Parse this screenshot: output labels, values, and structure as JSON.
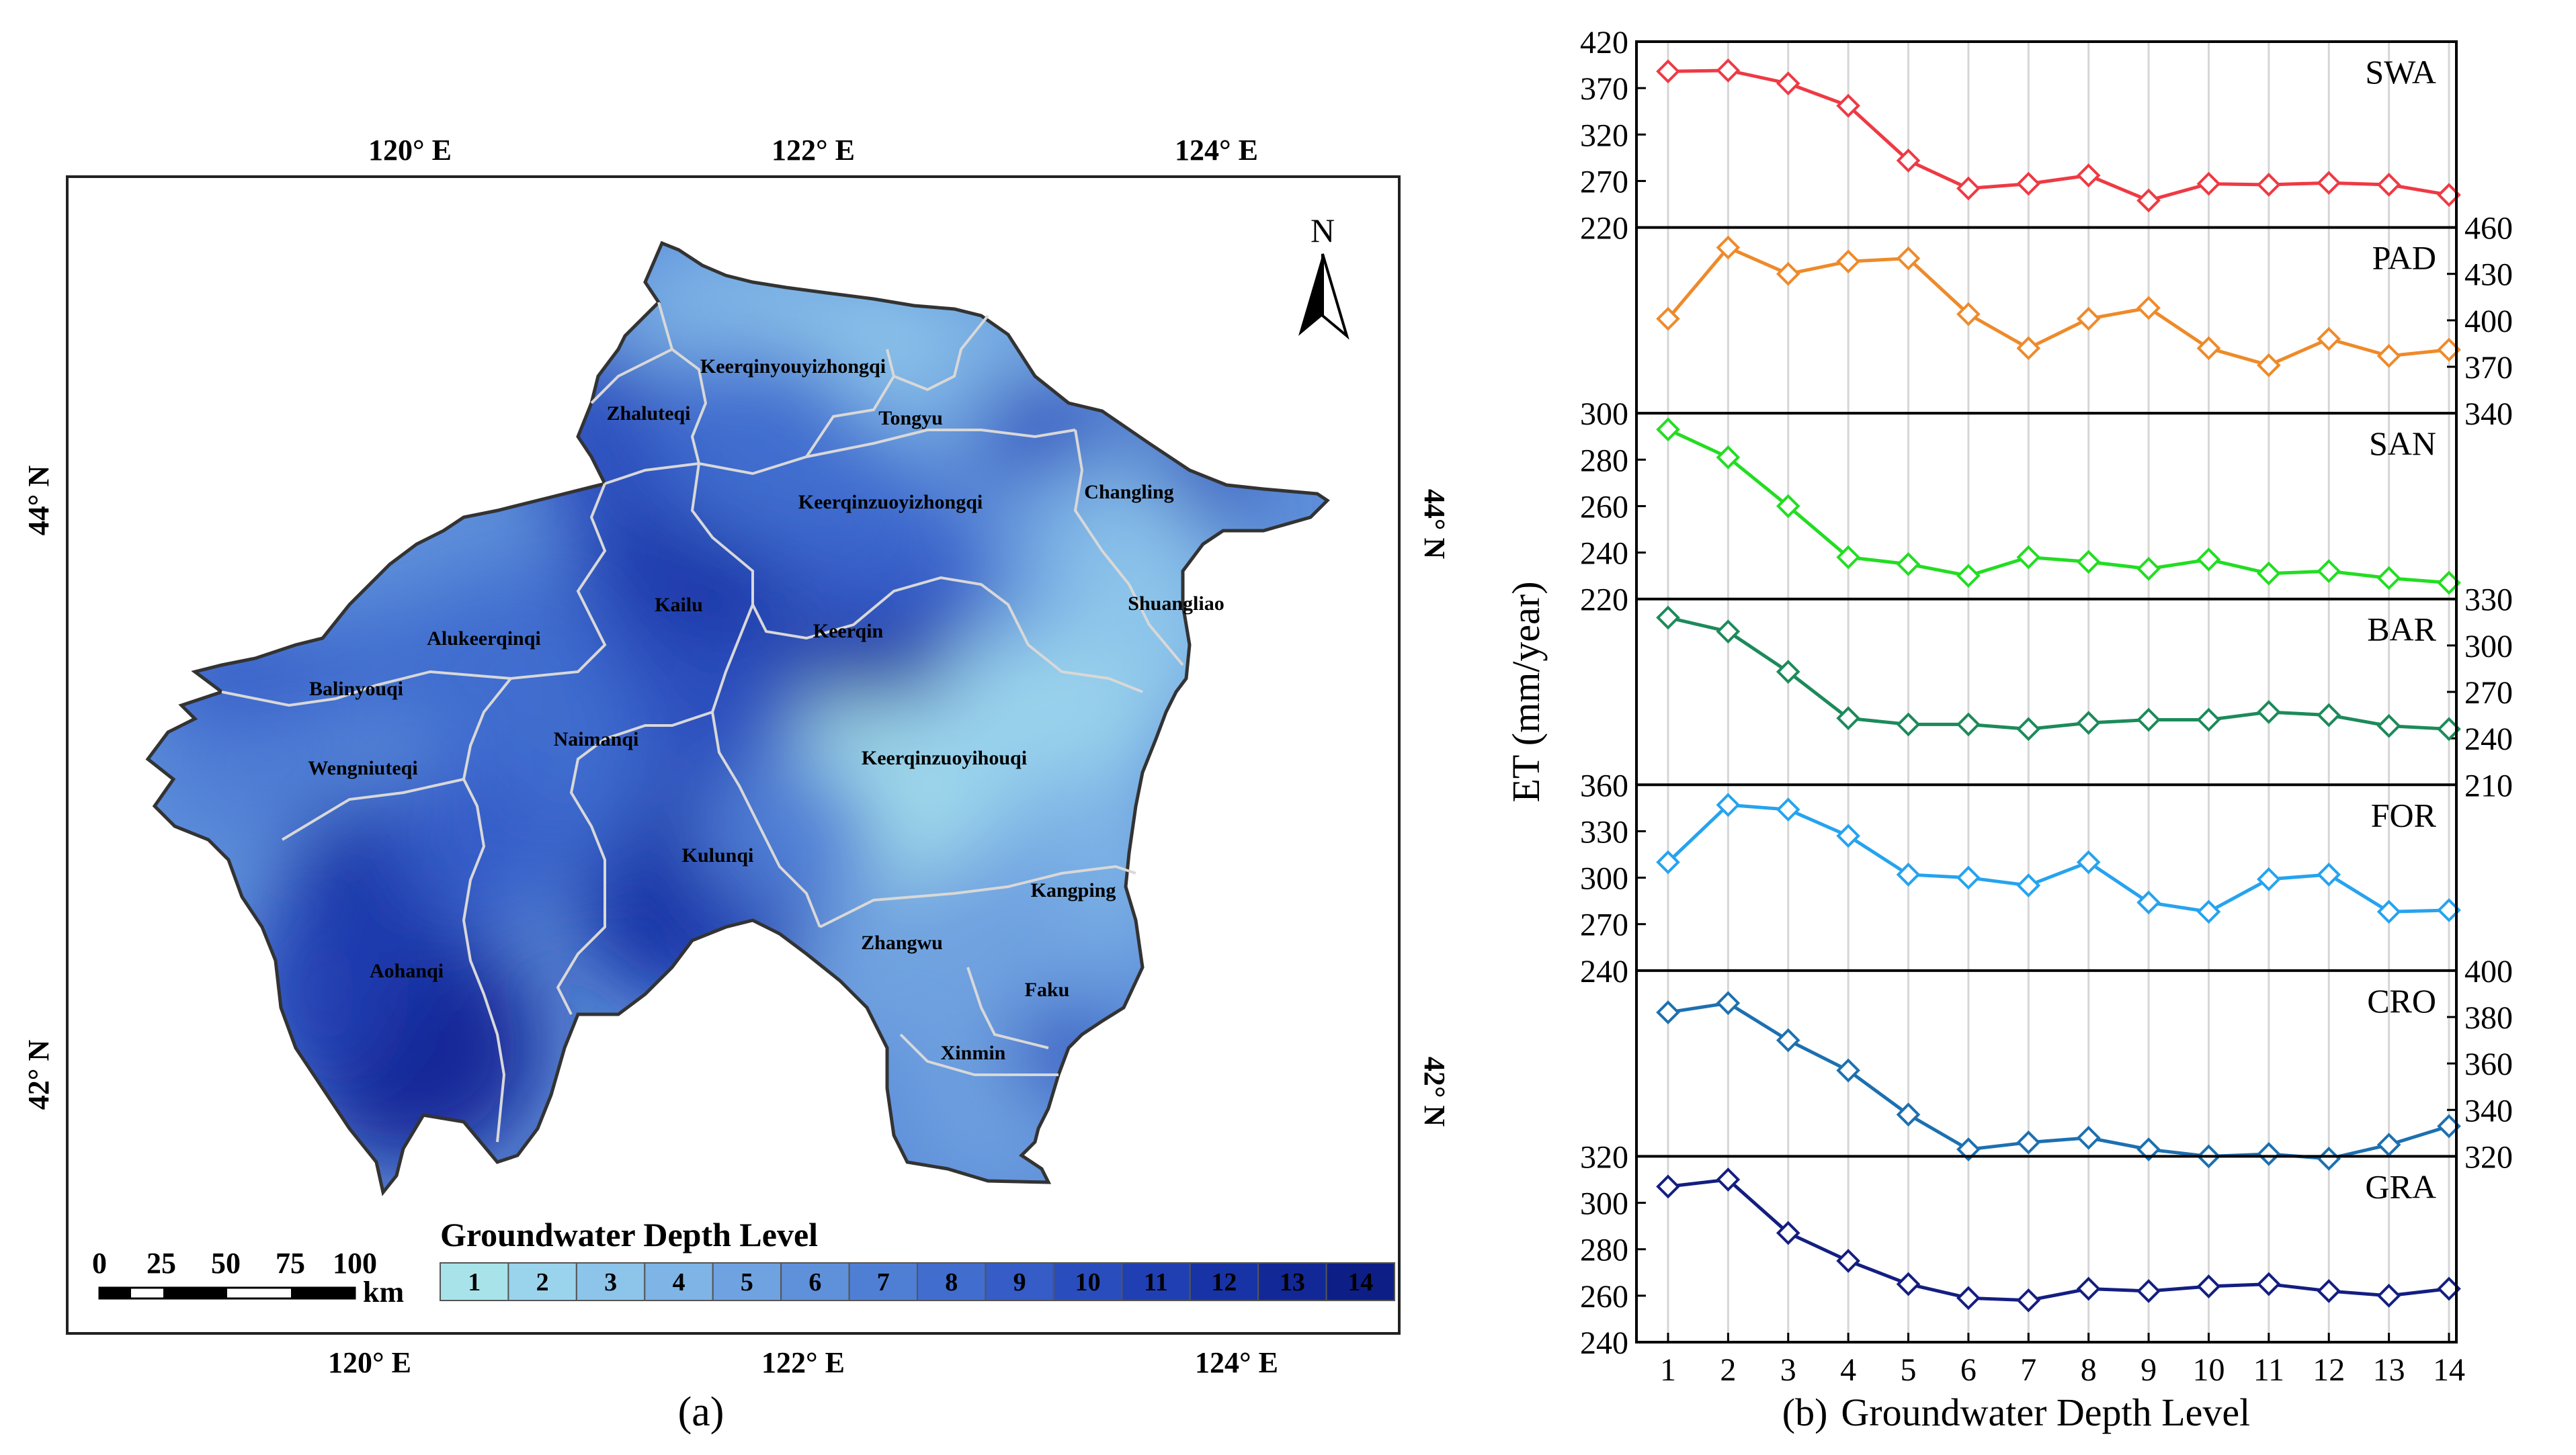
{
  "panel_a": {
    "caption": "(a)",
    "lon_ticks": [
      "120° E",
      "122° E",
      "124° E"
    ],
    "lat_ticks": [
      "44° N",
      "42° N"
    ],
    "north_label": "N",
    "scale_bar": {
      "ticks": [
        "0",
        "25",
        "50",
        "75",
        "100"
      ],
      "unit": "km"
    },
    "legend_title": "Groundwater Depth Level",
    "legend_levels": [
      "1",
      "2",
      "3",
      "4",
      "5",
      "6",
      "7",
      "8",
      "9",
      "10",
      "11",
      "12",
      "13",
      "14"
    ],
    "level_colors": [
      "#a8e3ea",
      "#9ad3ec",
      "#8cc4ea",
      "#7eb4e6",
      "#6fa2e0",
      "#5f90da",
      "#4f7ed5",
      "#416dcf",
      "#355cc7",
      "#2a4dbd",
      "#203fb2",
      "#1833a5",
      "#122897",
      "#0d1f86"
    ],
    "regions": [
      "Keerqinyouyizhongqi",
      "Zhaluteqi",
      "Tongyu",
      "Changling",
      "Keerqinzuoyizhongqi",
      "Shuangliao",
      "Kailu",
      "Alukeerqinqi",
      "Keerqin",
      "Balinyouqi",
      "Naimanqi",
      "Wengniuteqi",
      "Keerqinzuoyihouqi",
      "Kulunqi",
      "Kangping",
      "Zhangwu",
      "Aohanqi",
      "Faku",
      "Xinmin"
    ]
  },
  "chart_data": {
    "type": "line",
    "caption": "(b)",
    "xlabel": "Groundwater Depth Level",
    "ylabel": "ET (mm/year)",
    "categories": [
      1,
      2,
      3,
      4,
      5,
      6,
      7,
      8,
      9,
      10,
      11,
      12,
      13,
      14
    ],
    "series": [
      {
        "name": "SWA",
        "color": "#ee3a44",
        "side": "left",
        "ylim": [
          220,
          420
        ],
        "ticks": [
          220,
          270,
          320,
          370,
          420
        ],
        "values": [
          388,
          389,
          375,
          351,
          292,
          262,
          267,
          276,
          249,
          267,
          266,
          268,
          266,
          255
        ]
      },
      {
        "name": "PAD",
        "color": "#ee8a2a",
        "side": "right",
        "ylim": [
          340,
          460
        ],
        "ticks": [
          340,
          370,
          400,
          430,
          460
        ],
        "values": [
          401,
          447,
          430,
          438,
          440,
          404,
          382,
          401,
          408,
          382,
          371,
          388,
          377,
          381
        ]
      },
      {
        "name": "SAN",
        "color": "#22dd22",
        "side": "left",
        "ylim": [
          220,
          300
        ],
        "ticks": [
          220,
          240,
          260,
          280,
          300
        ],
        "values": [
          293,
          281,
          260,
          238,
          235,
          230,
          238,
          236,
          233,
          237,
          231,
          232,
          229,
          227
        ]
      },
      {
        "name": "BAR",
        "color": "#1c8a5a",
        "side": "right",
        "ylim": [
          210,
          330
        ],
        "ticks": [
          210,
          240,
          270,
          300,
          330
        ],
        "values": [
          318,
          309,
          283,
          253,
          249,
          249,
          246,
          250,
          252,
          252,
          257,
          255,
          248,
          246
        ]
      },
      {
        "name": "FOR",
        "color": "#26a3ee",
        "side": "left",
        "ylim": [
          240,
          360
        ],
        "ticks": [
          240,
          270,
          300,
          330,
          360
        ],
        "values": [
          310,
          347,
          344,
          327,
          302,
          300,
          295,
          310,
          284,
          278,
          299,
          302,
          278,
          279
        ]
      },
      {
        "name": "CRO",
        "color": "#1c70b0",
        "side": "right",
        "ylim": [
          320,
          400
        ],
        "ticks": [
          320,
          340,
          360,
          380,
          400
        ],
        "values": [
          382,
          386,
          370,
          357,
          338,
          323,
          326,
          328,
          323,
          320,
          321,
          319,
          325,
          333
        ]
      },
      {
        "name": "GRA",
        "color": "#141e80",
        "side": "left",
        "ylim": [
          240,
          320
        ],
        "ticks": [
          240,
          260,
          280,
          300,
          320
        ],
        "values": [
          307,
          310,
          287,
          275,
          265,
          259,
          258,
          263,
          262,
          264,
          265,
          262,
          260,
          263
        ]
      }
    ]
  }
}
